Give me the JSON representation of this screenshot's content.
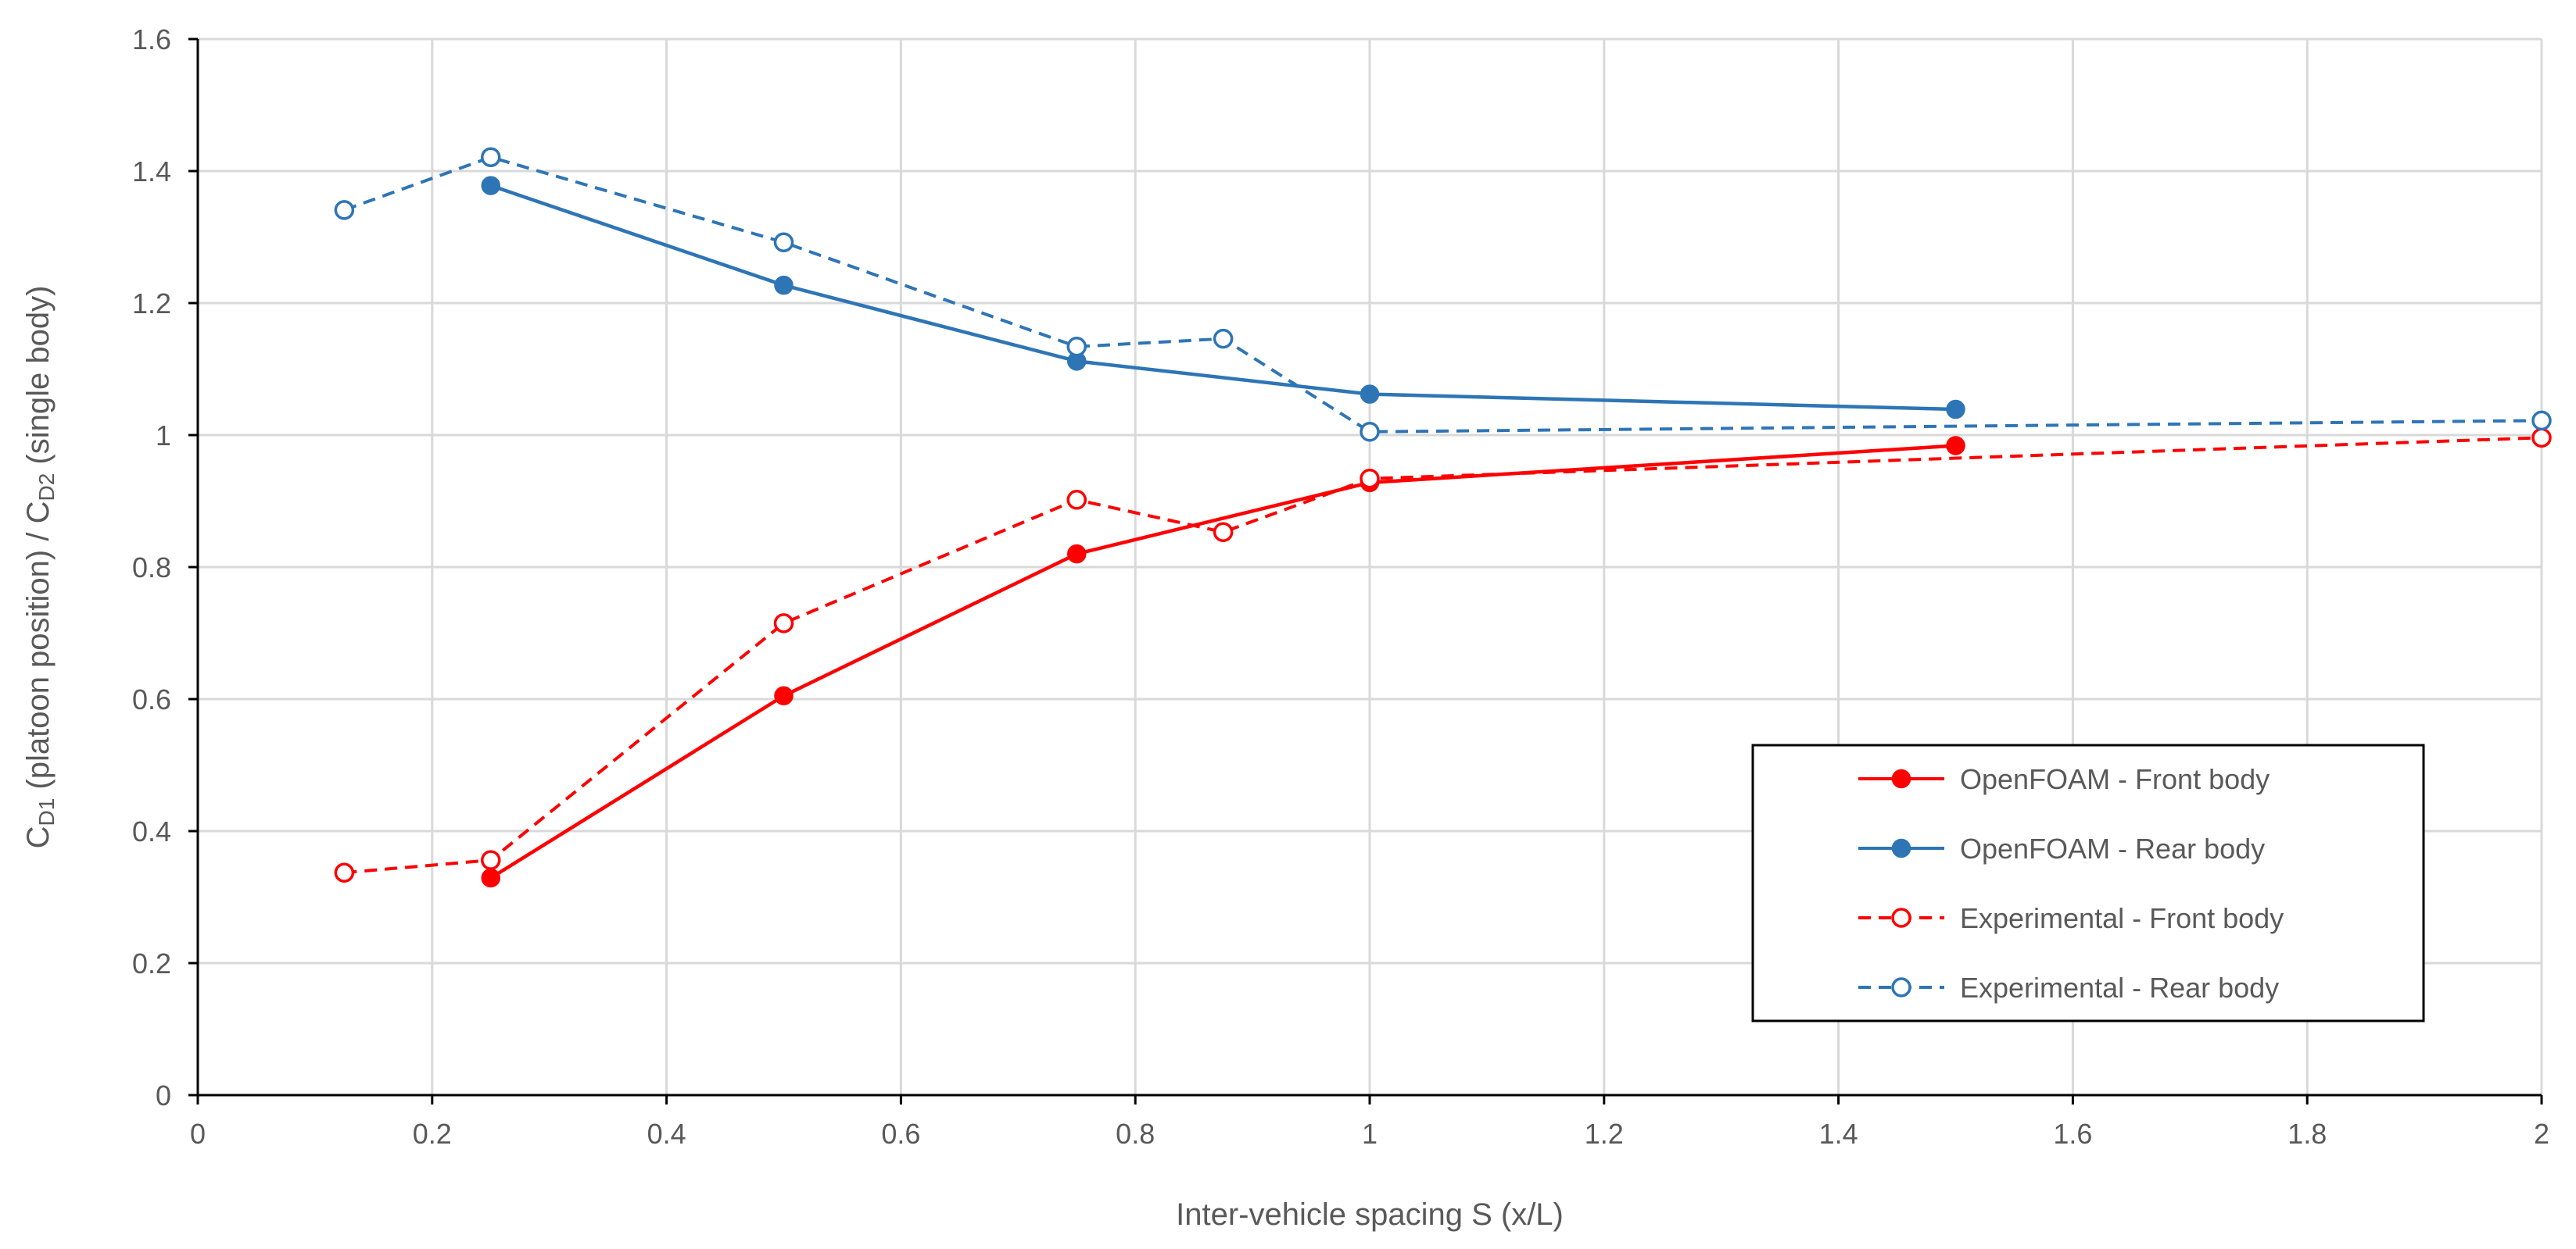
{
  "chart_data": {
    "type": "line",
    "title": "",
    "xlabel": "Inter-vehicle spacing S (x/L)",
    "ylabel": {
      "parts": [
        {
          "text": "C",
          "sub": false
        },
        {
          "text": "D1",
          "sub": true
        },
        {
          "text": " (platoon position) / C",
          "sub": false
        },
        {
          "text": "D2",
          "sub": true
        },
        {
          "text": " (single body)",
          "sub": false
        }
      ]
    },
    "xlim": [
      0,
      2
    ],
    "ylim": [
      0,
      1.6
    ],
    "x_ticks": [
      0,
      0.2,
      0.4,
      0.6,
      0.8,
      1,
      1.2,
      1.4,
      1.6,
      1.8,
      2
    ],
    "x_tick_labels": [
      "0",
      "0.2",
      "0.4",
      "0.6",
      "0.8",
      "1",
      "1.2",
      "1.4",
      "1.6",
      "1.8",
      "2"
    ],
    "y_ticks": [
      0,
      0.2,
      0.4,
      0.6,
      0.8,
      1,
      1.2,
      1.4,
      1.6
    ],
    "y_tick_labels": [
      "0",
      "0.2",
      "0.4",
      "0.6",
      "0.8",
      "1",
      "1.2",
      "1.4",
      "1.6"
    ],
    "grid": true,
    "legend_position": "bottom-right",
    "series": [
      {
        "name": "OpenFOAM - Front body",
        "color": "#ff0000",
        "dash": "solid",
        "marker": "filled-circle",
        "x": [
          0.25,
          0.5,
          0.75,
          1.0,
          1.5
        ],
        "y": [
          0.329,
          0.605,
          0.82,
          0.928,
          0.984
        ]
      },
      {
        "name": "OpenFOAM - Rear body",
        "color": "#2e75b6",
        "dash": "solid",
        "marker": "filled-circle",
        "x": [
          0.25,
          0.5,
          0.75,
          1.0,
          1.5
        ],
        "y": [
          1.378,
          1.227,
          1.112,
          1.062,
          1.039
        ]
      },
      {
        "name": "Experimental - Front body",
        "color": "#ff0000",
        "dash": "dashed",
        "marker": "open-circle",
        "x": [
          0.125,
          0.25,
          0.5,
          0.75,
          0.875,
          1.0,
          2.0
        ],
        "y": [
          0.337,
          0.356,
          0.715,
          0.902,
          0.853,
          0.934,
          0.996
        ]
      },
      {
        "name": "Experimental - Rear body",
        "color": "#2e75b6",
        "dash": "dashed",
        "marker": "open-circle",
        "x": [
          0.125,
          0.25,
          0.5,
          0.75,
          0.875,
          1.0,
          2.0
        ],
        "y": [
          1.341,
          1.421,
          1.292,
          1.134,
          1.146,
          1.005,
          1.022
        ]
      }
    ]
  }
}
